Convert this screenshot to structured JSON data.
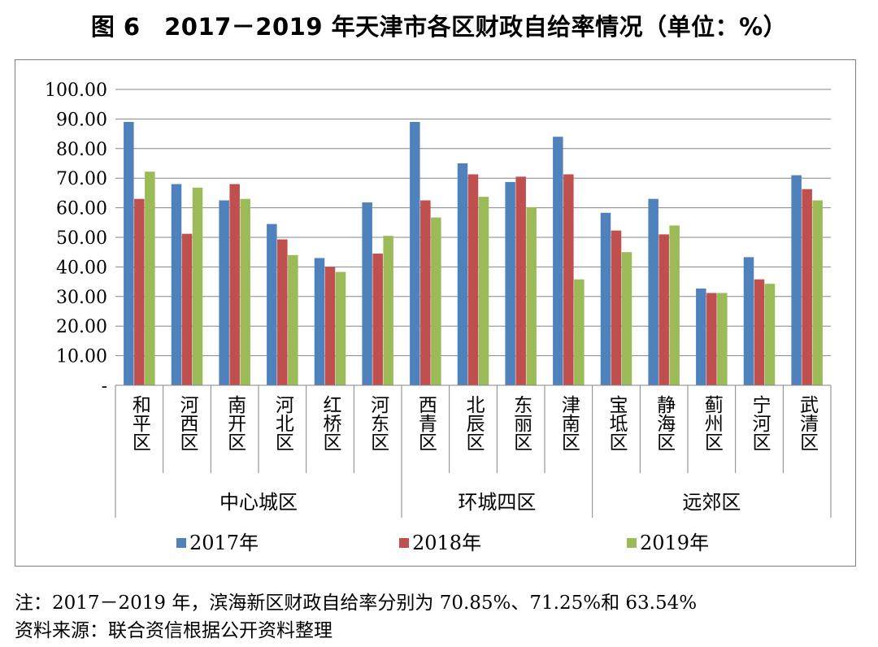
{
  "title": "图 6　2017－2019 年天津市各区财政自给率情况（单位：%）",
  "notes": {
    "note": "注：2017－2019 年，滨海新区财政自给率分别为 70.85%、71.25%和 63.54%",
    "source": "资料来源：联合资信根据公开资料整理"
  },
  "colors": {
    "2017": "#4f81bd",
    "2018": "#c0504d",
    "2019": "#9bbb59",
    "grid": "#868686"
  },
  "chart_data": {
    "type": "bar",
    "title": "2017－2019 年天津市各区财政自给率情况（单位：%）",
    "categories": [
      "和平区",
      "河西区",
      "南开区",
      "河北区",
      "红桥区",
      "河东区",
      "西青区",
      "北辰区",
      "东丽区",
      "津南区",
      "宝坻区",
      "静海区",
      "蓟州区",
      "宁河区",
      "武清区"
    ],
    "groups": [
      {
        "name": "中心城区",
        "count": 6
      },
      {
        "name": "环城四区",
        "count": 4
      },
      {
        "name": "远郊区",
        "count": 5
      }
    ],
    "series": [
      {
        "name": "2017年",
        "values": [
          89.0,
          68.0,
          62.5,
          54.5,
          43.0,
          61.8,
          89.0,
          75.0,
          68.7,
          84.0,
          58.3,
          63.0,
          32.7,
          43.3,
          71.0
        ]
      },
      {
        "name": "2018年",
        "values": [
          63.0,
          51.2,
          68.0,
          49.3,
          40.0,
          44.5,
          62.5,
          71.3,
          70.5,
          71.3,
          52.3,
          51.0,
          31.2,
          35.8,
          66.3
        ]
      },
      {
        "name": "2019年",
        "values": [
          72.2,
          66.8,
          63.0,
          44.0,
          38.3,
          50.5,
          56.7,
          63.7,
          60.2,
          35.8,
          45.0,
          54.0,
          31.2,
          34.3,
          62.5
        ]
      }
    ],
    "yticks": [
      "-",
      "10.00",
      "20.00",
      "30.00",
      "40.00",
      "50.00",
      "60.00",
      "70.00",
      "80.00",
      "90.00",
      "100.00"
    ],
    "ylim": [
      0,
      100
    ],
    "legend": [
      "2017年",
      "2018年",
      "2019年"
    ],
    "legend_position": "bottom",
    "grid": true
  }
}
